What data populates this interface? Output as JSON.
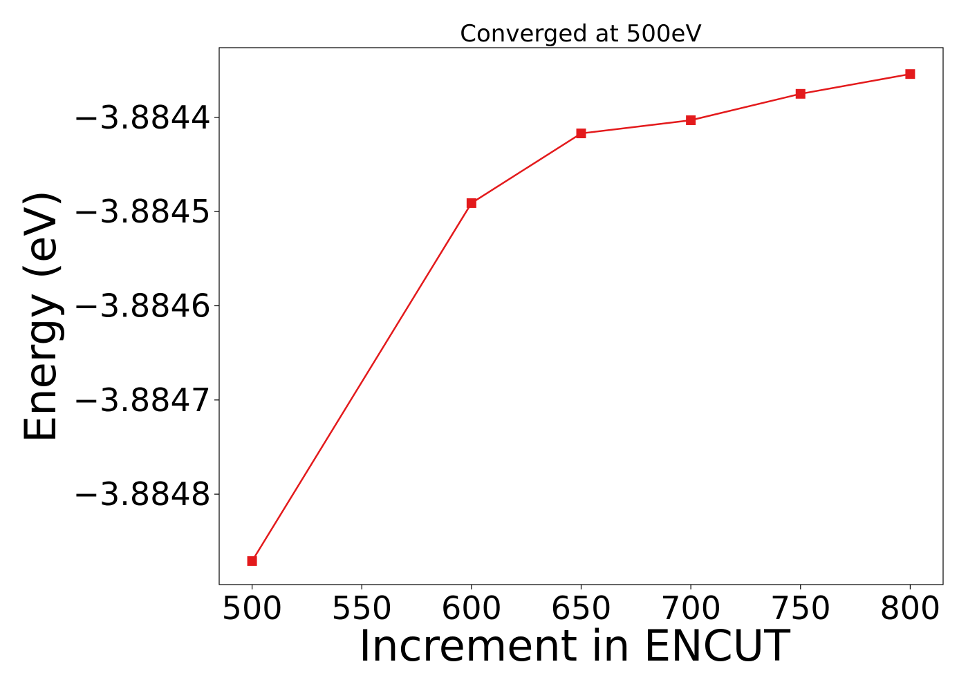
{
  "chart_data": {
    "type": "line",
    "title": "Converged at 500eV",
    "xlabel": "Increment in ENCUT",
    "ylabel": "Energy (eV)",
    "x": [
      500,
      600,
      650,
      700,
      750,
      800
    ],
    "series": [
      {
        "values": [
          -3.884871,
          -3.884491,
          -3.884417,
          -3.884403,
          -3.884375,
          -3.884354
        ],
        "color": "#e31a1c",
        "marker": "square"
      }
    ],
    "x_ticks": [
      500,
      550,
      600,
      650,
      700,
      750,
      800
    ],
    "x_tick_labels": [
      "500",
      "550",
      "600",
      "650",
      "700",
      "750",
      "800"
    ],
    "y_ticks": [
      -3.8848,
      -3.8847,
      -3.8846,
      -3.8845,
      -3.8844
    ],
    "y_tick_labels": [
      "−3.8848",
      "−3.8847",
      "−3.8846",
      "−3.8845",
      "−3.8844"
    ],
    "xlim": [
      485,
      815
    ],
    "ylim": [
      -3.884896,
      -3.884326
    ],
    "grid": false,
    "legend": "none"
  }
}
